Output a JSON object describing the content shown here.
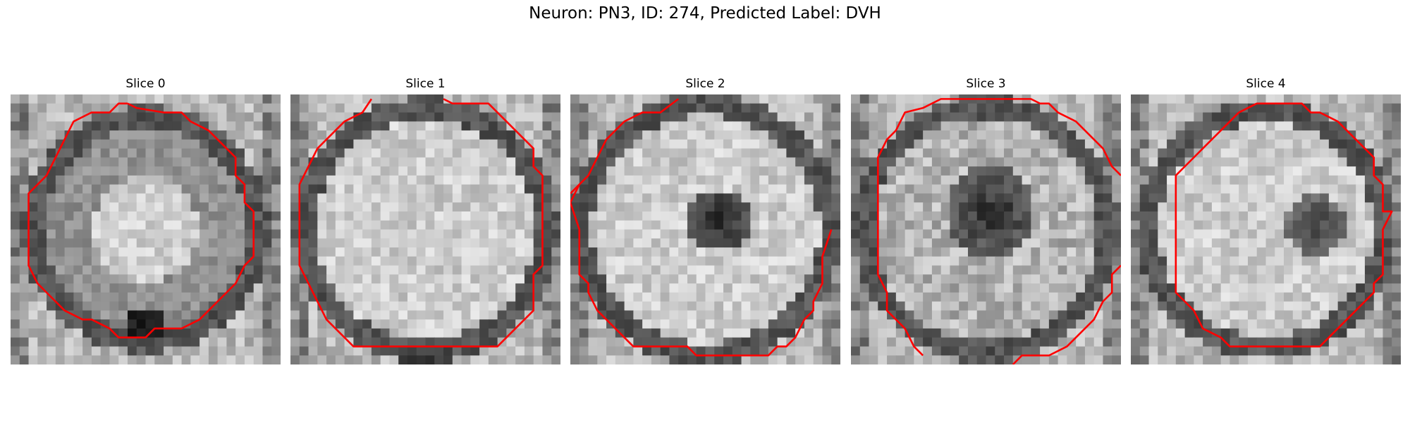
{
  "figure": {
    "title": "Neuron: PN3, ID: 274, Predicted Label: DVH"
  },
  "panels": [
    {
      "title": "Slice 0",
      "cell_fill": "light-center",
      "membrane_color": "#555555",
      "ring_y_offset": 0.0,
      "dark_spot": "bottom"
    },
    {
      "title": "Slice 1",
      "cell_fill": "light-uniform",
      "membrane_color": "#4a4a4a",
      "ring_y_offset": 0.0,
      "dark_spot": "none"
    },
    {
      "title": "Slice 2",
      "cell_fill": "light-with-dark-nucleus",
      "membrane_color": "#4f4f4f",
      "ring_y_offset": 0.0,
      "dark_spot": "center-right"
    },
    {
      "title": "Slice 3",
      "cell_fill": "light-with-large-dark-nucleus",
      "membrane_color": "#4a4a4a",
      "ring_y_offset": 0.0,
      "dark_spot": "center"
    },
    {
      "title": "Slice 4",
      "cell_fill": "light-with-dark-nucleus",
      "membrane_color": "#555555",
      "ring_y_offset": 0.0,
      "dark_spot": "center-right-small"
    }
  ],
  "contour_color": "#ff0000"
}
